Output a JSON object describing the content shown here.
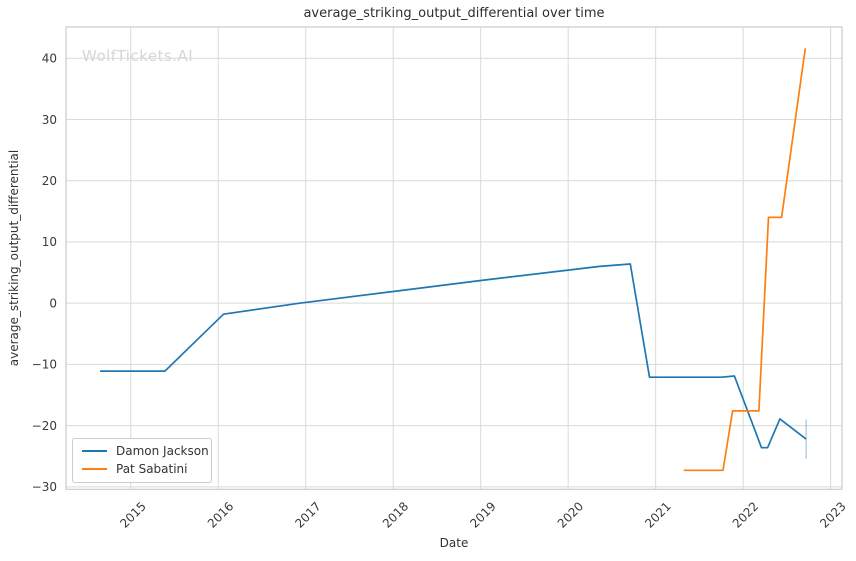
{
  "chart_data": {
    "type": "line",
    "title": "average_striking_output_differential over time",
    "xlabel": "Date",
    "ylabel": "average_striking_output_differential",
    "watermark": "WolfTickets.AI",
    "grid": true,
    "legend": {
      "position": "lower left"
    },
    "x_axis": {
      "unit": "decimal_year",
      "ticks": [
        2015,
        2016,
        2017,
        2018,
        2019,
        2020,
        2021,
        2022,
        2023
      ],
      "lim": [
        2014.26,
        2023.13
      ]
    },
    "y_axis": {
      "ticks": [
        -30,
        -20,
        -10,
        0,
        10,
        20,
        30,
        40
      ],
      "lim": [
        -30.4,
        45.1
      ]
    },
    "series": [
      {
        "name": "Damon Jackson",
        "color": "#1f77b4",
        "points": [
          [
            2014.65,
            -11.1
          ],
          [
            2015.39,
            -11.1
          ],
          [
            2016.06,
            -1.8
          ],
          [
            2016.93,
            0.0
          ],
          [
            2018.0,
            1.9
          ],
          [
            2019.0,
            3.7
          ],
          [
            2020.36,
            6.0
          ],
          [
            2020.71,
            6.4
          ],
          [
            2020.93,
            -12.1
          ],
          [
            2021.75,
            -12.1
          ],
          [
            2021.9,
            -11.9
          ],
          [
            2022.21,
            -23.6
          ],
          [
            2022.28,
            -23.6
          ],
          [
            2022.42,
            -18.9
          ],
          [
            2022.72,
            -22.2
          ]
        ]
      },
      {
        "name": "Pat Sabatini",
        "color": "#ff7f0e",
        "points": [
          [
            2021.32,
            -27.3
          ],
          [
            2021.77,
            -27.3
          ],
          [
            2021.88,
            -17.6
          ],
          [
            2022.18,
            -17.6
          ],
          [
            2022.29,
            14.0
          ],
          [
            2022.44,
            14.0
          ],
          [
            2022.71,
            41.6
          ]
        ]
      }
    ],
    "error_bar": {
      "series": "Damon Jackson",
      "x": 2022.72,
      "from": -25.4,
      "to": -19.0,
      "color": "rgba(31,119,180,0.35)"
    },
    "colors": {
      "grid": "#d9d9d9",
      "spine": "#cccccc",
      "tick_text": "#3a3a3a"
    }
  }
}
